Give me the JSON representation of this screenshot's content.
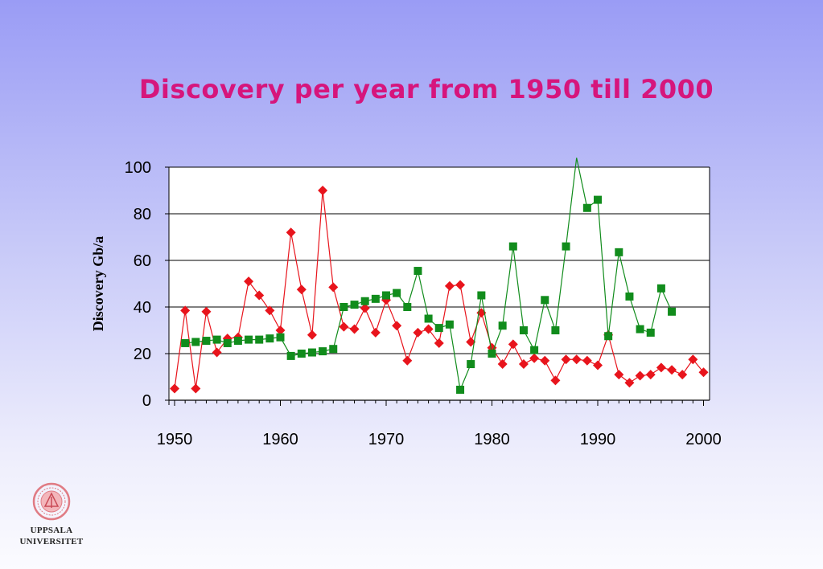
{
  "slide": {
    "title": "Discovery per year from 1950 till 2000"
  },
  "logo": {
    "line1": "UPPSALA",
    "line2": "UNIVERSITET",
    "seal_color": "#e07b84"
  },
  "chart_data": {
    "type": "line",
    "title": "Discovery per year from 1950 till 2000",
    "xlabel": "",
    "ylabel": "Discovery Gb/a",
    "xlim": [
      1950,
      2000
    ],
    "ylim": [
      0,
      100
    ],
    "x_ticks": [
      1950,
      1960,
      1970,
      1980,
      1990,
      2000
    ],
    "y_ticks": [
      0,
      20,
      40,
      60,
      80,
      100
    ],
    "grid": "horizontal",
    "legend": "none",
    "series": [
      {
        "color": "#e8141c",
        "marker": "diamond",
        "x": [
          1950,
          1951,
          1952,
          1953,
          1954,
          1955,
          1956,
          1957,
          1958,
          1959,
          1960,
          1961,
          1962,
          1963,
          1964,
          1965,
          1966,
          1967,
          1968,
          1969,
          1970,
          1971,
          1972,
          1973,
          1974,
          1975,
          1976,
          1977,
          1978,
          1979,
          1980,
          1981,
          1982,
          1983,
          1984,
          1985,
          1986,
          1987,
          1988,
          1989,
          1990,
          1991,
          1992,
          1993,
          1994,
          1995,
          1996,
          1997,
          1998,
          1999,
          2000
        ],
        "values": [
          5,
          38.5,
          5,
          38,
          20.5,
          26.5,
          27,
          51,
          45,
          38.5,
          30,
          72,
          47.5,
          28,
          90,
          48.5,
          31.5,
          30.5,
          39.5,
          29,
          43,
          32,
          17,
          29,
          30.5,
          24.5,
          49,
          49.5,
          25,
          37.5,
          22.5,
          15.5,
          24,
          15.5,
          18,
          17,
          8.5,
          17.5,
          17.5,
          17,
          15,
          28,
          11,
          7.5,
          10.5,
          11,
          14,
          13,
          11,
          17.5,
          12
        ]
      },
      {
        "color": "#118c1c",
        "marker": "square",
        "x": [
          1951,
          1952,
          1953,
          1954,
          1955,
          1956,
          1957,
          1958,
          1959,
          1960,
          1961,
          1962,
          1963,
          1964,
          1965,
          1966,
          1967,
          1968,
          1969,
          1970,
          1971,
          1972,
          1973,
          1974,
          1975,
          1976,
          1977,
          1978,
          1979,
          1980,
          1981,
          1982,
          1983,
          1984,
          1985,
          1986,
          1987,
          1988,
          1989,
          1990,
          1991,
          1992,
          1993,
          1994,
          1995,
          1996,
          1997
        ],
        "values": [
          24.5,
          25,
          25.5,
          26,
          24.5,
          25.5,
          26,
          26,
          26.5,
          27,
          19,
          20,
          20.5,
          21,
          22,
          40,
          41,
          42.5,
          43.5,
          45,
          46,
          40,
          55.5,
          35,
          31,
          32.5,
          4.5,
          15.5,
          45,
          20,
          32,
          66,
          30,
          21.5,
          43,
          30,
          66,
          104,
          82.5,
          86,
          27.5,
          63.5,
          44.5,
          30.5,
          29,
          48,
          38
        ]
      }
    ]
  }
}
